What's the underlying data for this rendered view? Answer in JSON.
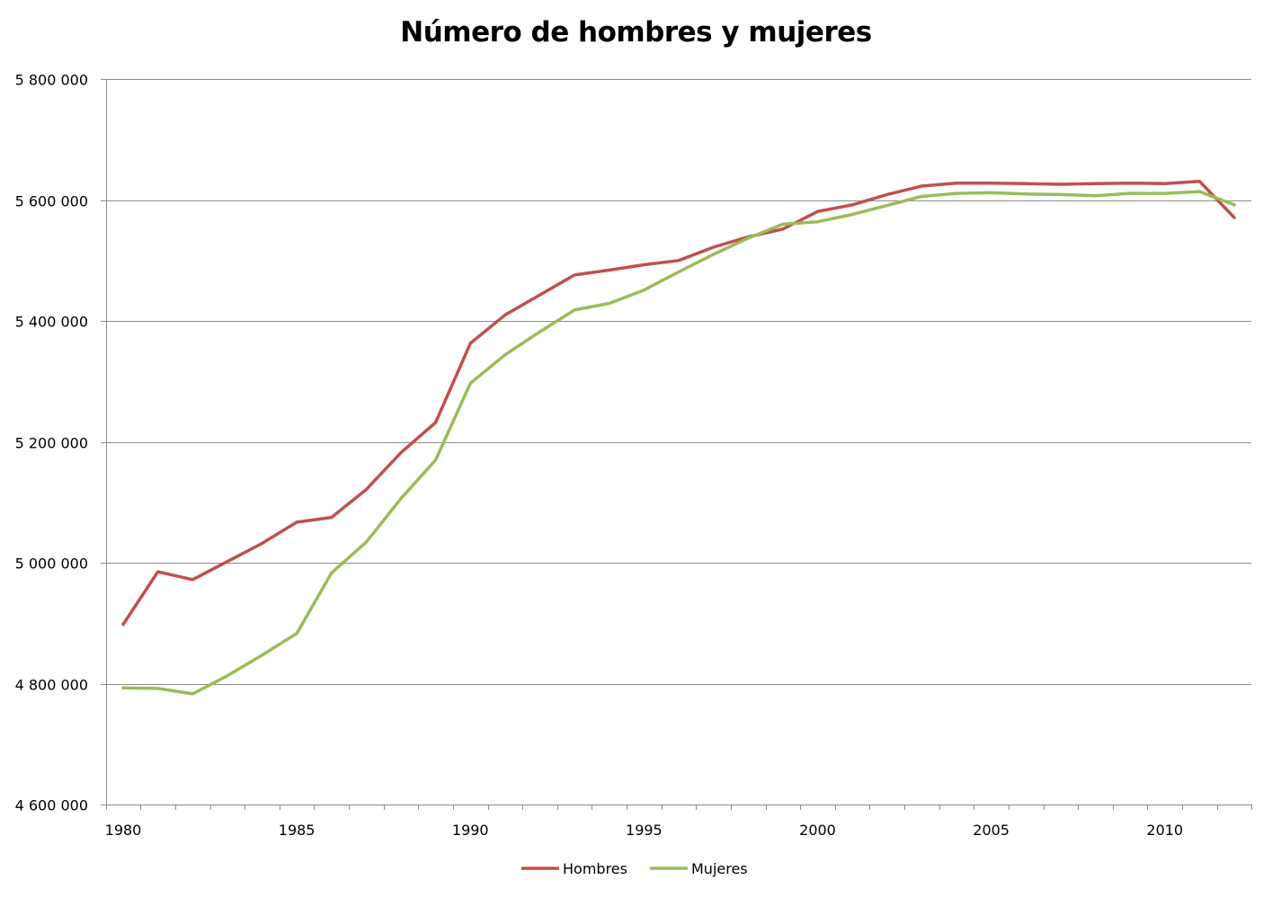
{
  "chart_data": {
    "type": "line",
    "title": "Número de hombres y mujeres",
    "xlabel": "",
    "ylabel": "",
    "xlim": [
      1980,
      2012
    ],
    "ylim": [
      4600000,
      5800000
    ],
    "x_ticks": [
      1980,
      1985,
      1990,
      1995,
      2000,
      2005,
      2010
    ],
    "x_tick_labels": [
      "1980",
      "1985",
      "1990",
      "1995",
      "2000",
      "2005",
      "2010"
    ],
    "y_ticks": [
      4600000,
      4800000,
      5000000,
      5200000,
      5400000,
      5600000,
      5800000
    ],
    "y_tick_labels": [
      "4 600 000",
      "4 800 000",
      "5 000 000",
      "5 200 000",
      "5 400 000",
      "5 600 000",
      "5 800 000"
    ],
    "grid": "horizontal",
    "legend_position": "bottom",
    "x": [
      1980,
      1981,
      1982,
      1983,
      1984,
      1985,
      1986,
      1987,
      1988,
      1989,
      1990,
      1991,
      1992,
      1993,
      1994,
      1995,
      1996,
      1997,
      1998,
      1999,
      2000,
      2001,
      2002,
      2003,
      2004,
      2005,
      2006,
      2007,
      2008,
      2009,
      2010,
      2011,
      2012
    ],
    "series": [
      {
        "name": "Hombres",
        "color": "#c0504d",
        "values": [
          4898000,
          4985000,
          4972000,
          5002000,
          5032000,
          5067000,
          5075000,
          5121000,
          5182000,
          5232000,
          5363000,
          5410000,
          5443000,
          5476000,
          5484000,
          5493000,
          5500000,
          5522000,
          5539000,
          5552000,
          5581000,
          5592000,
          5609000,
          5623000,
          5628000,
          5628000,
          5627000,
          5626000,
          5627000,
          5628000,
          5627000,
          5631000,
          5571000
        ]
      },
      {
        "name": "Mujeres",
        "color": "#9bbb59",
        "values": [
          4793000,
          4792000,
          4783000,
          4813000,
          4847000,
          4883000,
          4983000,
          5034000,
          5106000,
          5170000,
          5297000,
          5344000,
          5382000,
          5418000,
          5429000,
          5451000,
          5481000,
          5510000,
          5537000,
          5560000,
          5564000,
          5576000,
          5591000,
          5606000,
          5611000,
          5612000,
          5610000,
          5609000,
          5607000,
          5611000,
          5611000,
          5614000,
          5592000
        ]
      }
    ]
  }
}
